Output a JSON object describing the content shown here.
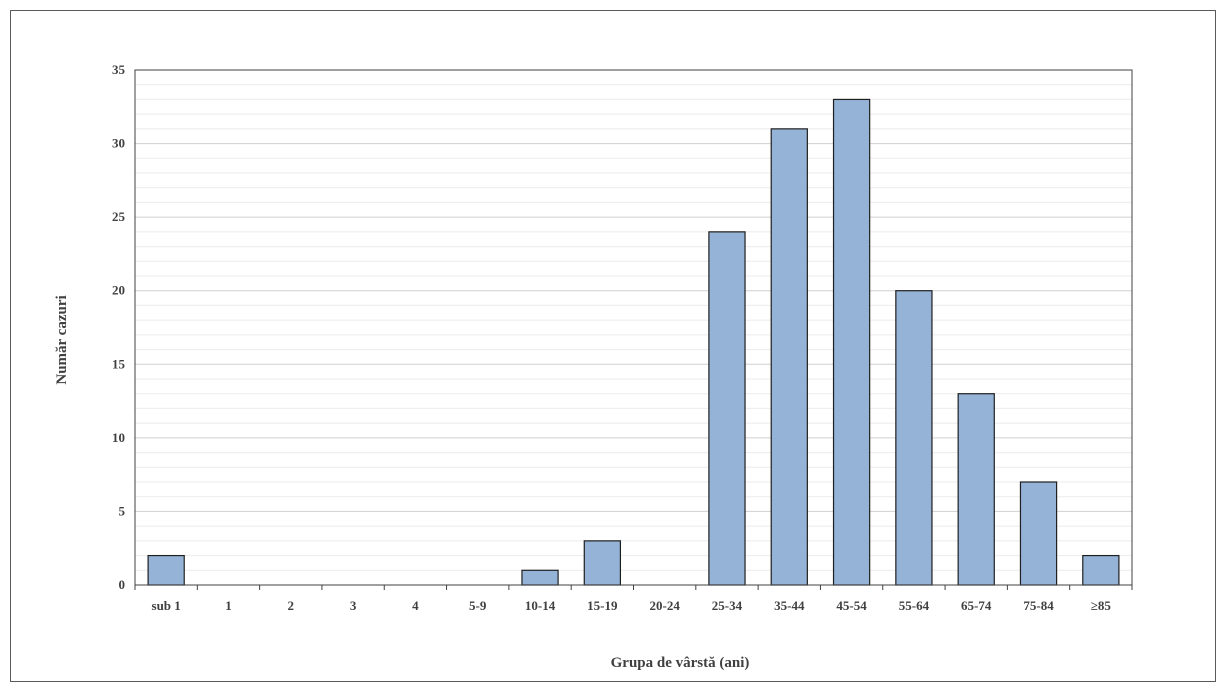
{
  "chart_data": {
    "type": "bar",
    "title": "",
    "xlabel": "Grupa de vârstă (ani)",
    "ylabel": "Număr cazuri",
    "categories": [
      "sub 1",
      "1",
      "2",
      "3",
      "4",
      "5-9",
      "10-14",
      "15-19",
      "20-24",
      "25-34",
      "35-44",
      "45-54",
      "55-64",
      "65-74",
      "75-84",
      "≥85"
    ],
    "values": [
      2,
      0,
      0,
      0,
      0,
      0,
      1,
      3,
      0,
      24,
      31,
      33,
      20,
      13,
      7,
      2
    ],
    "ylim": [
      0,
      35
    ],
    "yticks": [
      "0",
      "5",
      "10",
      "15",
      "20",
      "25",
      "30",
      "35"
    ],
    "grid": true,
    "legend": "none",
    "colors": {
      "bar_fill": "#95b3d7",
      "bar_stroke": "#1f1f1f",
      "grid_major": "#d0d0d0",
      "grid_minor": "#ebebeb",
      "text": "#404040"
    }
  }
}
